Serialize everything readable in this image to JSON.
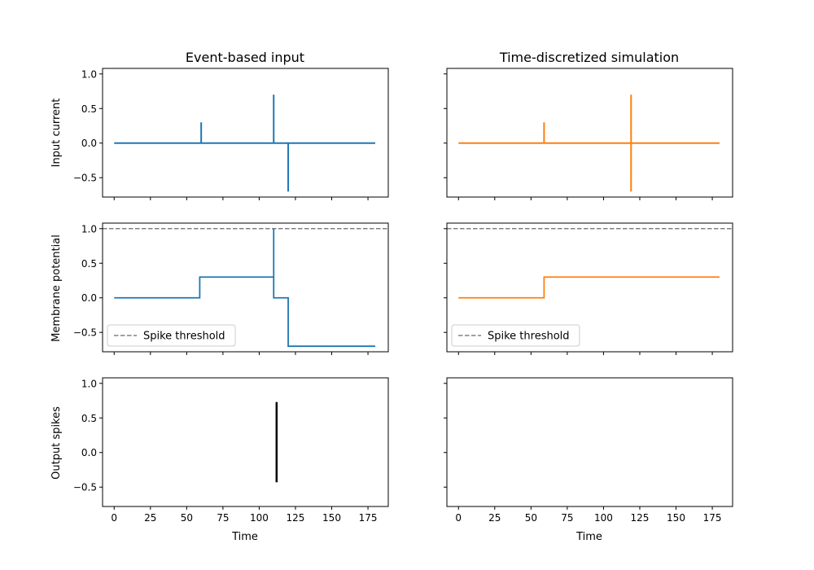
{
  "figure": {
    "columns": [
      {
        "title": "Event-based input",
        "color": "#1f77b4"
      },
      {
        "title": "Time-discretized simulation",
        "color": "#ff7f0e"
      }
    ],
    "row_labels": [
      "Input current",
      "Membrane potential",
      "Output spikes"
    ],
    "xlabel": "Time"
  },
  "chart_data": {
    "type": "line",
    "xlim": [
      -8,
      189
    ],
    "xticks": [
      0,
      25,
      50,
      75,
      100,
      125,
      150,
      175
    ],
    "ylim": [
      -0.78,
      1.08
    ],
    "yticks": [
      1.0,
      0.5,
      0.0,
      -0.5
    ],
    "ytick_labels": [
      "1.0",
      "0.5",
      "0.0",
      "−0.5"
    ],
    "threshold": {
      "value": 1.0,
      "color": "#808080",
      "label": "Spike threshold"
    },
    "panels": [
      {
        "row": 0,
        "col": 0,
        "kind": "line",
        "width": 2,
        "x": [
          0,
          60,
          60,
          60,
          60,
          110,
          110,
          110,
          110,
          120,
          120,
          120,
          120,
          180
        ],
        "y": [
          0,
          0,
          0.3,
          0.3,
          0,
          0,
          0.7,
          0.7,
          0,
          0,
          -0.7,
          -0.7,
          0,
          0
        ]
      },
      {
        "row": 0,
        "col": 1,
        "kind": "line",
        "width": 2,
        "x": [
          0,
          59,
          59,
          59,
          59,
          119,
          119,
          119,
          119,
          180
        ],
        "y": [
          0,
          0,
          0.3,
          0.3,
          0,
          0,
          0.7,
          -0.7,
          0,
          0
        ]
      },
      {
        "row": 1,
        "col": 0,
        "kind": "line",
        "width": 1.8,
        "threshold": true,
        "x": [
          0,
          59,
          59,
          110,
          110,
          110,
          110,
          120,
          120,
          180
        ],
        "y": [
          0,
          0,
          0.3,
          0.3,
          1.0,
          1.0,
          0,
          0,
          -0.7,
          -0.7
        ]
      },
      {
        "row": 1,
        "col": 1,
        "kind": "line",
        "width": 1.8,
        "threshold": true,
        "x": [
          0,
          59,
          59,
          180
        ],
        "y": [
          0,
          0,
          0.3,
          0.3
        ]
      },
      {
        "row": 2,
        "col": 0,
        "kind": "spikes",
        "spikes": [
          {
            "x": 112,
            "y0": -0.43,
            "y1": 0.73
          }
        ]
      },
      {
        "row": 2,
        "col": 1,
        "kind": "empty"
      }
    ]
  }
}
